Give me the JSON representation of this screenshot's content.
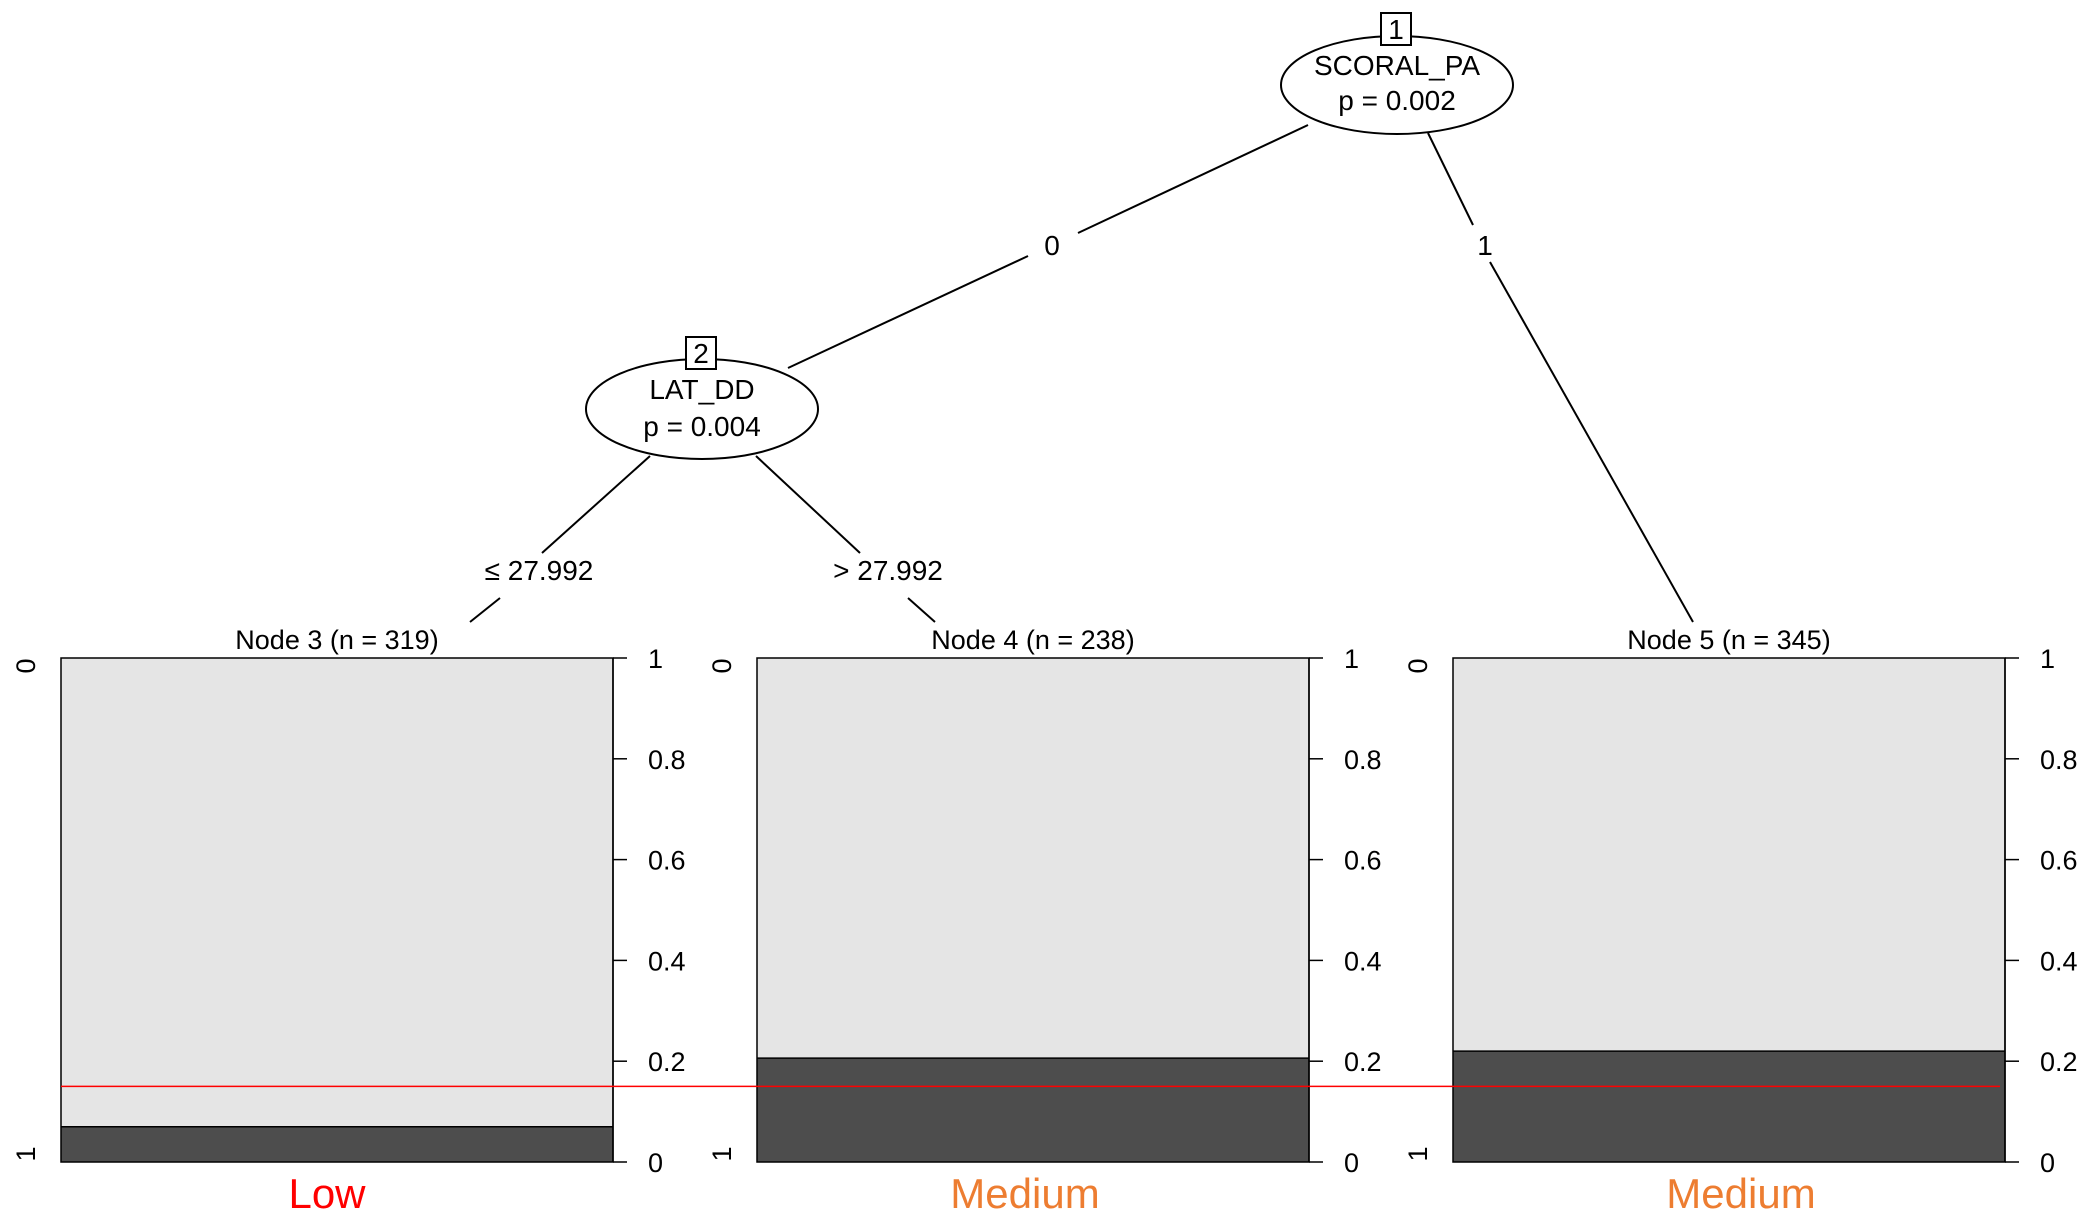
{
  "tree": {
    "inner_nodes": [
      {
        "id": "1",
        "variable": "SCORAL_PA",
        "pvalue": "p = 0.002"
      },
      {
        "id": "2",
        "variable": "LAT_DD",
        "pvalue": "p = 0.004"
      }
    ],
    "edges": [
      {
        "from": "1",
        "to": "2",
        "label": "0"
      },
      {
        "from": "1",
        "to": "5",
        "label": "1"
      },
      {
        "from": "2",
        "to": "3",
        "label": "≤ 27.992"
      },
      {
        "from": "2",
        "to": "4",
        "label": "> 27.992"
      }
    ],
    "terminal_nodes": [
      {
        "id": "3",
        "title": "Node 3 (n = 319)",
        "proportion_1": 0.07,
        "category": "Low",
        "category_color": "#ff0000"
      },
      {
        "id": "4",
        "title": "Node 4 (n = 238)",
        "proportion_1": 0.206,
        "category": "Medium",
        "category_color": "#ed7d31"
      },
      {
        "id": "5",
        "title": "Node 5 (n = 345)",
        "proportion_1": 0.22,
        "category": "Medium",
        "category_color": "#ed7d31"
      }
    ],
    "class_labels": [
      "0",
      "1"
    ],
    "axis_ticks": [
      "0",
      "0.2",
      "0.4",
      "0.6",
      "0.8",
      "1"
    ],
    "threshold_value": 0.15,
    "threshold_color": "#ff0000",
    "colors": {
      "class_0": "#e5e5e5",
      "class_1": "#4d4d4d"
    }
  }
}
